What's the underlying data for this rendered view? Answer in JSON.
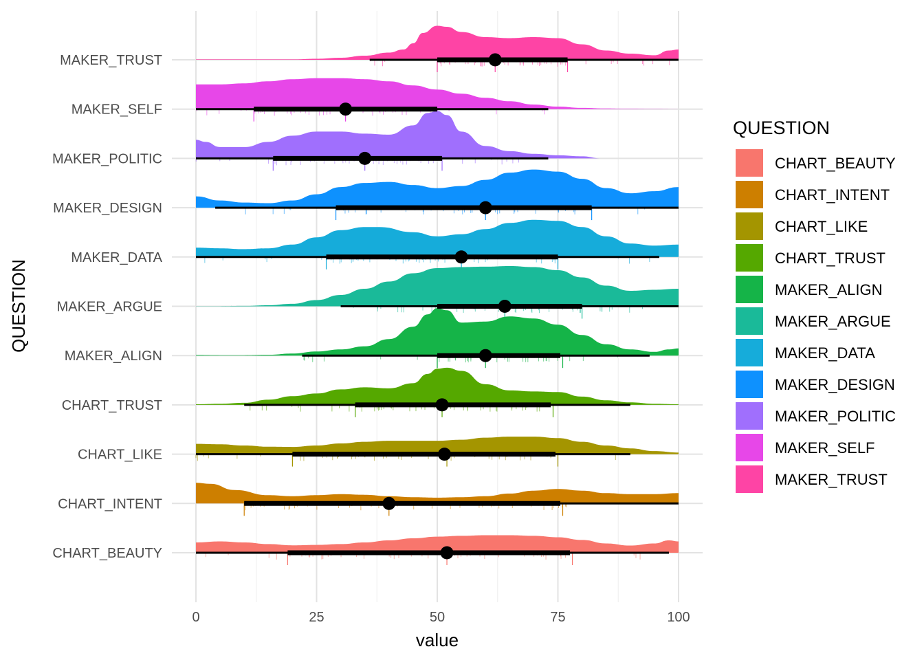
{
  "chart_data": {
    "type": "raincloud",
    "title": "",
    "xlabel": "value",
    "ylabel": "QUESTION",
    "xlim": [
      0,
      100
    ],
    "xticks": [
      0,
      25,
      50,
      75,
      100
    ],
    "grid": true,
    "legend": {
      "title": "QUESTION",
      "placement": "right"
    },
    "categories": [
      "CHART_BEAUTY",
      "CHART_INTENT",
      "CHART_LIKE",
      "CHART_TRUST",
      "MAKER_ALIGN",
      "MAKER_ARGUE",
      "MAKER_DATA",
      "MAKER_DESIGN",
      "MAKER_POLITIC",
      "MAKER_SELF",
      "MAKER_TRUST"
    ],
    "series": [
      {
        "name": "CHART_BEAUTY",
        "color": "#F8766D",
        "median": 52,
        "q1": 19,
        "q3": 77.5,
        "low": 0,
        "high": 98,
        "density_x": [
          0,
          5,
          10,
          15,
          20,
          25,
          30,
          35,
          40,
          45,
          50,
          55,
          60,
          65,
          70,
          75,
          80,
          85,
          90,
          95,
          98,
          100
        ],
        "density_y": [
          0.5,
          0.55,
          0.5,
          0.42,
          0.36,
          0.38,
          0.42,
          0.5,
          0.6,
          0.7,
          0.78,
          0.82,
          0.85,
          0.85,
          0.82,
          0.75,
          0.62,
          0.45,
          0.35,
          0.45,
          0.6,
          0.55
        ]
      },
      {
        "name": "CHART_INTENT",
        "color": "#CD7F00",
        "median": 40,
        "q1": 10,
        "q3": 75.5,
        "low": 10,
        "high": 100,
        "density_x": [
          0,
          3,
          8,
          15,
          20,
          25,
          30,
          35,
          40,
          45,
          50,
          55,
          60,
          65,
          70,
          75,
          80,
          85,
          90,
          95,
          100
        ],
        "density_y": [
          1.0,
          0.95,
          0.65,
          0.4,
          0.35,
          0.4,
          0.45,
          0.42,
          0.35,
          0.3,
          0.28,
          0.3,
          0.35,
          0.48,
          0.62,
          0.7,
          0.62,
          0.5,
          0.45,
          0.45,
          0.5
        ]
      },
      {
        "name": "CHART_LIKE",
        "color": "#A49500",
        "median": 51.5,
        "q1": 20,
        "q3": 74.5,
        "low": 0,
        "high": 90,
        "density_x": [
          0,
          5,
          10,
          15,
          20,
          25,
          30,
          35,
          40,
          45,
          50,
          55,
          60,
          65,
          70,
          75,
          80,
          85,
          90,
          95,
          100
        ],
        "density_y": [
          0.5,
          0.48,
          0.42,
          0.36,
          0.35,
          0.42,
          0.52,
          0.6,
          0.65,
          0.65,
          0.65,
          0.7,
          0.8,
          0.85,
          0.85,
          0.78,
          0.6,
          0.42,
          0.28,
          0.15,
          0.08
        ]
      },
      {
        "name": "CHART_TRUST",
        "color": "#55A800",
        "median": 51,
        "q1": 33,
        "q3": 73.5,
        "low": 10,
        "high": 90,
        "density_x": [
          0,
          5,
          10,
          15,
          20,
          25,
          30,
          35,
          40,
          45,
          48,
          50,
          52,
          55,
          60,
          65,
          70,
          75,
          80,
          85,
          90,
          95,
          100
        ],
        "density_y": [
          0.03,
          0.05,
          0.1,
          0.25,
          0.42,
          0.55,
          0.75,
          0.85,
          0.8,
          1.05,
          1.5,
          1.75,
          1.8,
          1.65,
          1.0,
          0.7,
          0.65,
          0.62,
          0.4,
          0.22,
          0.12,
          0.05,
          0.03
        ]
      },
      {
        "name": "MAKER_ALIGN",
        "color": "#15B448",
        "median": 60,
        "q1": 50,
        "q3": 75.5,
        "low": 22,
        "high": 94,
        "density_x": [
          0,
          5,
          10,
          15,
          20,
          25,
          30,
          35,
          40,
          45,
          48,
          50,
          52,
          55,
          60,
          65,
          70,
          75,
          80,
          85,
          90,
          95,
          98,
          100
        ],
        "density_y": [
          0.03,
          0.02,
          0.02,
          0.04,
          0.1,
          0.2,
          0.3,
          0.45,
          0.8,
          1.4,
          2.0,
          2.3,
          2.2,
          1.6,
          1.65,
          1.9,
          1.8,
          1.5,
          1.0,
          0.55,
          0.3,
          0.18,
          0.3,
          0.35
        ]
      },
      {
        "name": "MAKER_ARGUE",
        "color": "#1ABA99",
        "median": 64,
        "q1": 50,
        "q3": 80,
        "low": 30,
        "high": 100,
        "density_x": [
          0,
          5,
          10,
          15,
          20,
          25,
          30,
          35,
          40,
          45,
          50,
          55,
          60,
          65,
          70,
          75,
          80,
          85,
          90,
          95,
          100
        ],
        "density_y": [
          0.01,
          0.01,
          0.02,
          0.05,
          0.12,
          0.3,
          0.55,
          0.85,
          1.2,
          1.6,
          1.85,
          1.9,
          1.92,
          1.95,
          1.9,
          1.75,
          1.4,
          1.0,
          0.75,
          0.8,
          0.85
        ]
      },
      {
        "name": "MAKER_DATA",
        "color": "#16ACDA",
        "median": 55,
        "q1": 27,
        "q3": 75,
        "low": 0,
        "high": 96,
        "density_x": [
          0,
          5,
          10,
          15,
          20,
          25,
          30,
          35,
          38,
          45,
          50,
          55,
          60,
          65,
          70,
          75,
          80,
          85,
          90,
          95,
          100
        ],
        "density_y": [
          0.45,
          0.42,
          0.38,
          0.42,
          0.6,
          0.95,
          1.3,
          1.45,
          1.45,
          1.2,
          1.0,
          1.1,
          1.35,
          1.65,
          1.8,
          1.75,
          1.45,
          1.0,
          0.65,
          0.55,
          0.6
        ]
      },
      {
        "name": "MAKER_DESIGN",
        "color": "#0E91FE",
        "median": 60,
        "q1": 29,
        "q3": 82,
        "low": 4,
        "high": 100,
        "density_x": [
          0,
          5,
          10,
          15,
          20,
          25,
          30,
          35,
          40,
          45,
          50,
          55,
          60,
          65,
          70,
          75,
          80,
          85,
          90,
          95,
          100
        ],
        "density_y": [
          0.55,
          0.35,
          0.25,
          0.22,
          0.35,
          0.65,
          1.0,
          1.2,
          1.25,
          1.1,
          0.95,
          1.05,
          1.35,
          1.7,
          1.85,
          1.75,
          1.4,
          0.95,
          0.7,
          0.8,
          1.0
        ]
      },
      {
        "name": "MAKER_POLITIC",
        "color": "#A06FFD",
        "median": 35,
        "q1": 16,
        "q3": 51,
        "low": 0,
        "high": 73,
        "density_x": [
          0,
          2,
          5,
          10,
          15,
          20,
          25,
          30,
          35,
          40,
          45,
          48,
          50,
          52,
          55,
          60,
          65,
          70,
          75,
          80,
          84
        ],
        "density_y": [
          0.9,
          0.8,
          0.55,
          0.55,
          0.8,
          1.1,
          1.3,
          1.3,
          1.2,
          1.15,
          1.6,
          2.2,
          2.3,
          2.1,
          1.3,
          0.6,
          0.35,
          0.22,
          0.15,
          0.1,
          0.0
        ]
      },
      {
        "name": "MAKER_SELF",
        "color": "#E747E8",
        "median": 31,
        "q1": 12,
        "q3": 50,
        "low": 0,
        "high": 73,
        "density_x": [
          0,
          5,
          10,
          15,
          20,
          25,
          30,
          35,
          40,
          45,
          50,
          55,
          60,
          65,
          70,
          75,
          80,
          85,
          90,
          95,
          100
        ],
        "density_y": [
          1.2,
          1.2,
          1.25,
          1.35,
          1.45,
          1.5,
          1.5,
          1.45,
          1.35,
          1.15,
          0.95,
          0.75,
          0.55,
          0.38,
          0.22,
          0.12,
          0.06,
          0.03,
          0.02,
          0.01,
          0.0
        ]
      },
      {
        "name": "MAKER_TRUST",
        "color": "#FE44A5",
        "median": 62,
        "q1": 50,
        "q3": 77,
        "low": 36,
        "high": 100,
        "density_x": [
          0,
          10,
          20,
          25,
          30,
          35,
          40,
          43,
          45,
          47,
          50,
          52,
          55,
          60,
          65,
          70,
          75,
          80,
          85,
          90,
          95,
          98,
          100
        ],
        "density_y": [
          0.02,
          0.02,
          0.02,
          0.05,
          0.1,
          0.2,
          0.35,
          0.5,
          0.8,
          1.3,
          1.65,
          1.6,
          1.35,
          1.1,
          1.05,
          1.1,
          1.05,
          0.75,
          0.45,
          0.3,
          0.22,
          0.45,
          0.5
        ]
      }
    ]
  }
}
